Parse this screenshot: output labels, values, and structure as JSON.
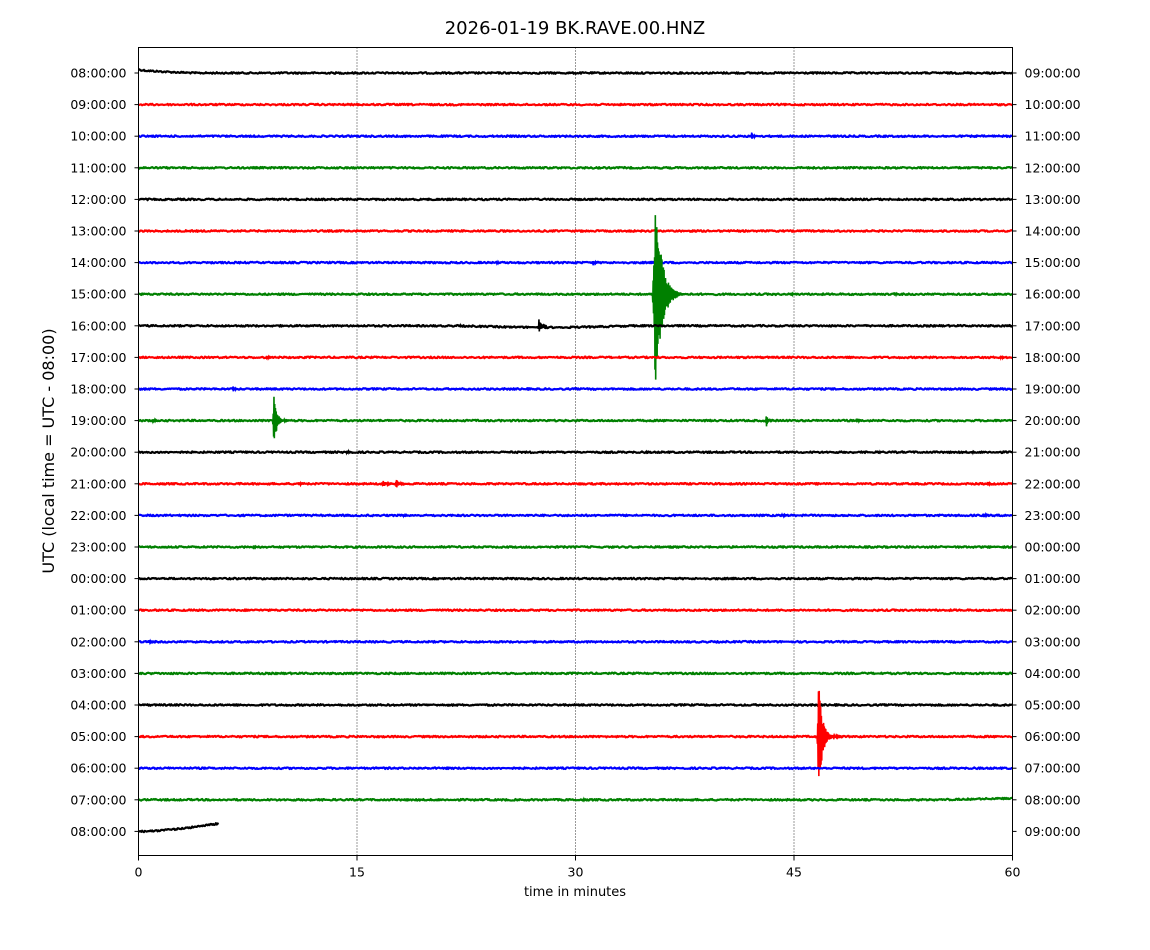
{
  "chart_data": {
    "type": "line",
    "title": "2026-01-19 BK.RAVE.00.HNZ",
    "xlabel": "time in minutes",
    "ylabel": "UTC (local time = UTC - 08:00)",
    "xlim": [
      0,
      60
    ],
    "x_ticks": [
      "0",
      "15",
      "30",
      "45",
      "60"
    ],
    "x_tick_values": [
      0,
      15,
      30,
      45,
      60
    ],
    "grid": "vertical dotted lines at 15, 30, 45",
    "colors": [
      "#000000",
      "#ff0000",
      "#0000ff",
      "#008000"
    ],
    "left_labels": [
      "08:00:00",
      "09:00:00",
      "10:00:00",
      "11:00:00",
      "12:00:00",
      "13:00:00",
      "14:00:00",
      "15:00:00",
      "16:00:00",
      "17:00:00",
      "18:00:00",
      "19:00:00",
      "20:00:00",
      "21:00:00",
      "22:00:00",
      "23:00:00",
      "00:00:00",
      "01:00:00",
      "02:00:00",
      "03:00:00",
      "04:00:00",
      "05:00:00",
      "06:00:00",
      "07:00:00",
      "08:00:00"
    ],
    "right_labels": [
      "09:00:00",
      "10:00:00",
      "11:00:00",
      "12:00:00",
      "13:00:00",
      "14:00:00",
      "15:00:00",
      "16:00:00",
      "17:00:00",
      "18:00:00",
      "19:00:00",
      "20:00:00",
      "21:00:00",
      "22:00:00",
      "23:00:00",
      "00:00:00",
      "01:00:00",
      "02:00:00",
      "03:00:00",
      "04:00:00",
      "05:00:00",
      "06:00:00",
      "07:00:00",
      "08:00:00",
      "09:00:00"
    ],
    "traces": [
      {
        "row": 0,
        "color": "#000000",
        "start_offset": -0.12,
        "drift_minutes": 4,
        "events": []
      },
      {
        "row": 1,
        "color": "#ff0000",
        "events": []
      },
      {
        "row": 2,
        "color": "#0000ff",
        "events": [
          {
            "t": 42.1,
            "amp": 0.15,
            "len": 0.4
          }
        ]
      },
      {
        "row": 3,
        "color": "#008000",
        "events": []
      },
      {
        "row": 4,
        "color": "#000000",
        "events": []
      },
      {
        "row": 5,
        "color": "#ff0000",
        "events": []
      },
      {
        "row": 6,
        "color": "#0000ff",
        "events": [
          {
            "t": 24.6,
            "amp": 0.05,
            "len": 0.3
          },
          {
            "t": 31.2,
            "amp": 0.1,
            "len": 0.5
          }
        ]
      },
      {
        "row": 7,
        "color": "#008000",
        "events": [
          {
            "t": 35.5,
            "amp": 3.0,
            "len": 2.2
          },
          {
            "t": 44.8,
            "amp": 0.06,
            "len": 0.3
          },
          {
            "t": 51.9,
            "amp": 0.08,
            "len": 0.3
          }
        ]
      },
      {
        "row": 8,
        "color": "#000000",
        "baseline_dip": {
          "from": 22.0,
          "to": 34.0,
          "depth": 0.05
        },
        "events": [
          {
            "t": 22.0,
            "amp": 0.06,
            "len": 0.3
          },
          {
            "t": 27.5,
            "amp": 0.25,
            "len": 0.6
          }
        ]
      },
      {
        "row": 9,
        "color": "#ff0000",
        "events": [
          {
            "t": 8.8,
            "amp": 0.07,
            "len": 0.5
          },
          {
            "t": 59.2,
            "amp": 0.07,
            "len": 0.4
          }
        ]
      },
      {
        "row": 10,
        "color": "#0000ff",
        "events": [
          {
            "t": 6.5,
            "amp": 0.1,
            "len": 0.4
          }
        ]
      },
      {
        "row": 11,
        "color": "#008000",
        "events": [
          {
            "t": 1.0,
            "amp": 0.08,
            "len": 0.5
          },
          {
            "t": 9.3,
            "amp": 0.8,
            "len": 1.0
          },
          {
            "t": 43.1,
            "amp": 0.22,
            "len": 0.5
          },
          {
            "t": 49.3,
            "amp": 0.1,
            "len": 0.4
          }
        ]
      },
      {
        "row": 12,
        "color": "#000000",
        "events": [
          {
            "t": 14.3,
            "amp": 0.07,
            "len": 0.5
          },
          {
            "t": 34.8,
            "amp": 0.04,
            "len": 0.2
          },
          {
            "t": 50.8,
            "amp": 0.05,
            "len": 0.3
          },
          {
            "t": 57.2,
            "amp": 0.05,
            "len": 0.3
          }
        ]
      },
      {
        "row": 13,
        "color": "#ff0000",
        "events": [
          {
            "t": 11.0,
            "amp": 0.08,
            "len": 0.4
          },
          {
            "t": 16.8,
            "amp": 0.1,
            "len": 1.0
          },
          {
            "t": 17.7,
            "amp": 0.15,
            "len": 0.9
          },
          {
            "t": 58.3,
            "amp": 0.08,
            "len": 0.4
          }
        ]
      },
      {
        "row": 14,
        "color": "#0000ff",
        "events": [
          {
            "t": 18.2,
            "amp": 0.05,
            "len": 0.4
          },
          {
            "t": 44.2,
            "amp": 0.05,
            "len": 0.8
          },
          {
            "t": 58.0,
            "amp": 0.1,
            "len": 0.5
          }
        ]
      },
      {
        "row": 15,
        "color": "#008000",
        "events": [
          {
            "t": 7.9,
            "amp": 0.08,
            "len": 0.3
          }
        ]
      },
      {
        "row": 16,
        "color": "#000000",
        "events": []
      },
      {
        "row": 17,
        "color": "#ff0000",
        "events": []
      },
      {
        "row": 18,
        "color": "#0000ff",
        "events": [
          {
            "t": 0.6,
            "amp": 0.06,
            "len": 1.0
          }
        ]
      },
      {
        "row": 19,
        "color": "#008000",
        "events": []
      },
      {
        "row": 20,
        "color": "#000000",
        "events": []
      },
      {
        "row": 21,
        "color": "#ff0000",
        "events": [
          {
            "t": 46.9,
            "amp": 0.55,
            "len": 1.6
          },
          {
            "t": 46.7,
            "amp": 1.8,
            "len": 1.2
          }
        ]
      },
      {
        "row": 22,
        "color": "#0000ff",
        "events": []
      },
      {
        "row": 23,
        "color": "#008000",
        "end_rise": 0.05,
        "events": [
          {
            "t": 30.5,
            "amp": 0.05,
            "len": 0.3
          }
        ]
      },
      {
        "row": 24,
        "color": "#000000",
        "end_minutes": 5.5,
        "start_offset": 0.0,
        "rise": 0.25,
        "events": []
      }
    ]
  }
}
